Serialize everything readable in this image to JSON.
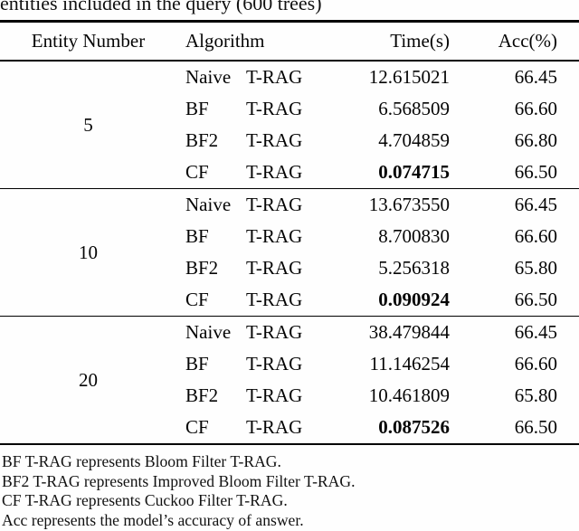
{
  "caption": "entities included in the query (600 trees)",
  "colors": {
    "text": "#050505",
    "background": "#fefefe",
    "rule": "#000000"
  },
  "table": {
    "headers": [
      "Entity Number",
      "Algorithm",
      "Time(s)",
      "Acc(%)"
    ],
    "groups": [
      {
        "entity_number": "5",
        "rows": [
          {
            "algo_name": "Naive",
            "algo_suffix": "T-RAG",
            "time": "12.615021",
            "acc": "66.45"
          },
          {
            "algo_name": "BF",
            "algo_suffix": "T-RAG",
            "time": "6.568509",
            "acc": "66.60"
          },
          {
            "algo_name": "BF2",
            "algo_suffix": "T-RAG",
            "time": "4.704859",
            "acc": "66.80"
          },
          {
            "algo_name": "CF",
            "algo_suffix": "T-RAG",
            "time": "0.074715",
            "acc": "66.50"
          }
        ]
      },
      {
        "entity_number": "10",
        "rows": [
          {
            "algo_name": "Naive",
            "algo_suffix": "T-RAG",
            "time": "13.673550",
            "acc": "66.45"
          },
          {
            "algo_name": "BF",
            "algo_suffix": "T-RAG",
            "time": "8.700830",
            "acc": "66.60"
          },
          {
            "algo_name": "BF2",
            "algo_suffix": "T-RAG",
            "time": "5.256318",
            "acc": "65.80"
          },
          {
            "algo_name": "CF",
            "algo_suffix": "T-RAG",
            "time": "0.090924",
            "acc": "66.50"
          }
        ]
      },
      {
        "entity_number": "20",
        "rows": [
          {
            "algo_name": "Naive",
            "algo_suffix": "T-RAG",
            "time": "38.479844",
            "acc": "66.45"
          },
          {
            "algo_name": "BF",
            "algo_suffix": "T-RAG",
            "time": "11.146254",
            "acc": "66.60"
          },
          {
            "algo_name": "BF2",
            "algo_suffix": "T-RAG",
            "time": "10.461809",
            "acc": "65.80"
          },
          {
            "algo_name": "CF",
            "algo_suffix": "T-RAG",
            "time": "0.087526",
            "acc": "66.50"
          }
        ]
      }
    ]
  },
  "footnotes": [
    "BF T-RAG represents Bloom Filter T-RAG.",
    "BF2 T-RAG represents Improved Bloom Filter T-RAG.",
    "CF T-RAG represents Cuckoo Filter T-RAG.",
    "Acc represents the model’s accuracy of answer."
  ]
}
